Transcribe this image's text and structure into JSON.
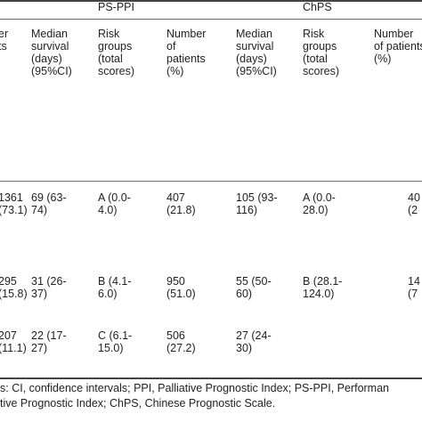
{
  "table": {
    "group_headers": {
      "ps_ppi": "PS-PPI",
      "chps": "ChPS"
    },
    "columns": {
      "col0": "er\nts",
      "ps_ppi_median": "Median\nsurvival\n(days)\n(95%CI)",
      "ps_ppi_risk": "Risk\ngroups\n(total\nscores)",
      "ps_ppi_number": "Number\nof\npatients\n(%)",
      "chps_median": "Median\nsurvival\n(days)\n(95%CI)",
      "chps_risk": "Risk\ngroups\n(total\nscores)",
      "chps_number": "Number\nof patients\n(%)"
    },
    "rows": [
      {
        "col0": "1361\n(73.1)",
        "ps_ppi_median": "69 (63-\n74)",
        "ps_ppi_risk": "A (0.0-\n4.0)",
        "ps_ppi_number": "407\n(21.8)",
        "chps_median": "105 (93-\n116)",
        "chps_risk": "A (0.0-\n28.0)",
        "chps_number": "40\n(2"
      },
      {
        "col0": "295\n(15.8)",
        "ps_ppi_median": "31 (26-\n37)",
        "ps_ppi_risk": "B (4.1-\n6.0)",
        "ps_ppi_number": "950\n(51.0)",
        "chps_median": "55 (50-\n60)",
        "chps_risk": "B (28.1-\n124.0)",
        "chps_number": "14\n(7"
      },
      {
        "col0": "207\n(11.1)",
        "ps_ppi_median": "22 (17-\n27)",
        "ps_ppi_risk": "C (6.1-\n15.0)",
        "ps_ppi_number": "506\n(27.2)",
        "chps_median": "27 (24-\n30)",
        "chps_risk": "",
        "chps_number": ""
      }
    ]
  },
  "footnote": {
    "line1": "s: CI, confidence intervals; PPI, Palliative Prognostic Index; PS-PPI, Performan",
    "line2": "tive Prognostic Index; ChPS, Chinese Prognostic Scale."
  }
}
